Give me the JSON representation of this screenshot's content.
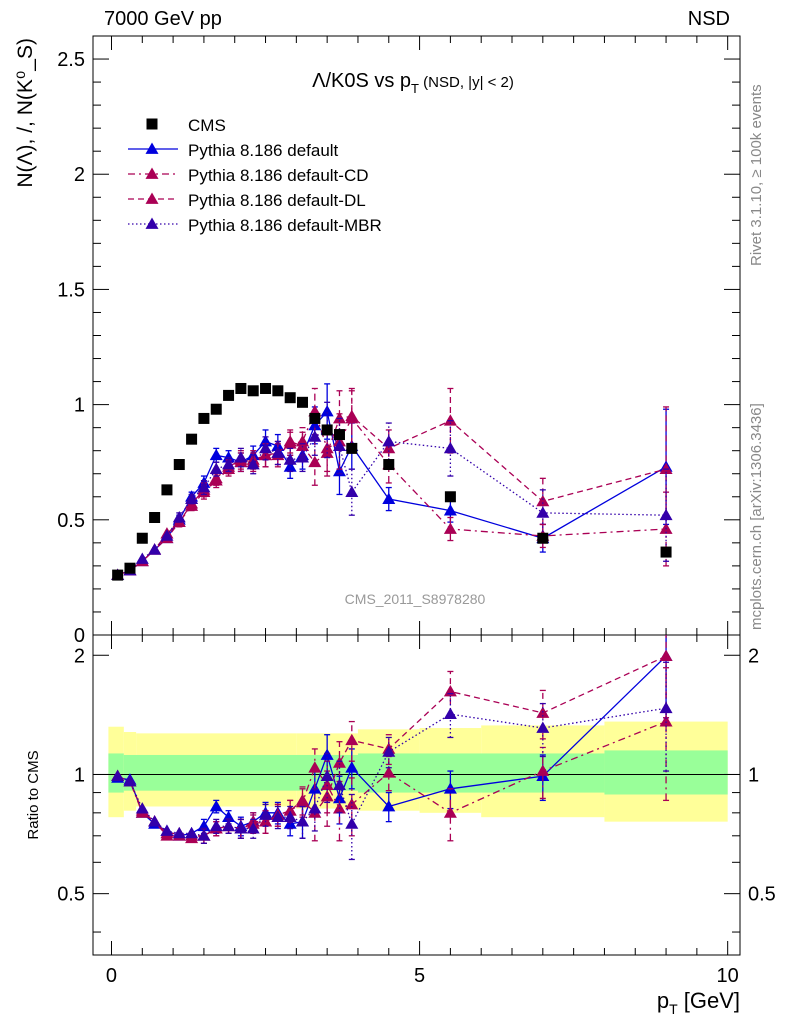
{
  "header": {
    "left": "7000 GeV pp",
    "right": "NSD"
  },
  "side_text": {
    "top": "Rivet 3.1.10, ≥ 100k events",
    "bottom": "mcplots.cern.ch [arXiv:1306.3436]"
  },
  "watermark": "CMS_2011_S8978280",
  "chart_data": {
    "type": "scatter",
    "title": "Λ/K0S vs p_T (NSD, |y| < 2)",
    "title_main": "Λ/K0S vs p",
    "title_sub": "T",
    "title_cond": "(NSD, |y| < 2)",
    "ylabel": "N(Λ), /, N(K⁰_S)",
    "xlabel": "p_T [GeV]",
    "xlabel_main": "p",
    "xlabel_sub": "T",
    "xlabel_unit": "[GeV]",
    "ratio_ylabel": "Ratio to CMS",
    "xlim": [
      -0.3,
      10.2
    ],
    "ylim": [
      0,
      2.6
    ],
    "ratio_ylim": [
      0.35,
      2.25
    ],
    "x_ticks": [
      {
        "v": 0,
        "label": "0"
      },
      {
        "v": 5,
        "label": "5"
      },
      {
        "v": 10,
        "label": "10"
      }
    ],
    "y_ticks": [
      {
        "v": 0,
        "label": "0"
      },
      {
        "v": 0.5,
        "label": "0.5"
      },
      {
        "v": 1,
        "label": "1"
      },
      {
        "v": 1.5,
        "label": "1.5"
      },
      {
        "v": 2,
        "label": "2"
      },
      {
        "v": 2.5,
        "label": "2.5"
      }
    ],
    "ratio_y_ticks": [
      {
        "v": 0.5,
        "label": "0.5"
      },
      {
        "v": 1,
        "label": "1"
      },
      {
        "v": 2,
        "label": "2"
      }
    ],
    "x": [
      0.1,
      0.3,
      0.5,
      0.7,
      0.9,
      1.1,
      1.3,
      1.5,
      1.7,
      1.9,
      2.1,
      2.3,
      2.5,
      2.7,
      2.9,
      3.1,
      3.3,
      3.5,
      3.7,
      3.9,
      4.5,
      5.5,
      7.0,
      9.0
    ],
    "reference": {
      "name": "CMS",
      "values": [
        0.26,
        0.29,
        0.42,
        0.51,
        0.63,
        0.74,
        0.85,
        0.94,
        0.98,
        1.04,
        1.07,
        1.06,
        1.07,
        1.06,
        1.03,
        1.01,
        0.94,
        0.89,
        0.87,
        0.81,
        0.74,
        0.6,
        0.42,
        0.36
      ],
      "color": "#000000"
    },
    "bands": [
      {
        "x0": -0.05,
        "x1": 0.2,
        "lo": 0.78,
        "hi": 1.32
      },
      {
        "x0": 0.2,
        "x1": 0.4,
        "lo": 0.81,
        "hi": 1.28
      },
      {
        "x0": 0.4,
        "x1": 3.0,
        "lo": 0.83,
        "hi": 1.27
      },
      {
        "x0": 3.0,
        "x1": 4.0,
        "lo": 0.82,
        "hi": 1.27
      },
      {
        "x0": 4.0,
        "x1": 5.0,
        "lo": 0.81,
        "hi": 1.3
      },
      {
        "x0": 5.0,
        "x1": 6.0,
        "lo": 0.8,
        "hi": 1.31
      },
      {
        "x0": 6.0,
        "x1": 8.0,
        "lo": 0.78,
        "hi": 1.33
      },
      {
        "x0": 8.0,
        "x1": 10.0,
        "lo": 0.76,
        "hi": 1.36
      }
    ],
    "inner_bands": [
      {
        "x0": -0.05,
        "x1": 0.2,
        "lo": 0.9,
        "hi": 1.13
      },
      {
        "x0": 0.2,
        "x1": 4.0,
        "lo": 0.91,
        "hi": 1.12
      },
      {
        "x0": 4.0,
        "x1": 8.0,
        "lo": 0.9,
        "hi": 1.13
      },
      {
        "x0": 8.0,
        "x1": 10.0,
        "lo": 0.89,
        "hi": 1.15
      }
    ],
    "band_colors": {
      "outer": "#ffff99",
      "inner": "#99ff99"
    },
    "series": [
      {
        "name": "Pythia 8.186 default",
        "color": "#0000dd",
        "dash": "",
        "values": [
          0.26,
          0.28,
          0.32,
          0.37,
          0.42,
          0.5,
          0.6,
          0.66,
          0.78,
          0.77,
          0.75,
          0.78,
          0.84,
          0.82,
          0.73,
          0.78,
          0.91,
          0.97,
          0.71,
          0.82,
          0.59,
          0.54,
          0.42,
          0.73
        ],
        "errors": [
          0.01,
          0.01,
          0.01,
          0.01,
          0.01,
          0.02,
          0.02,
          0.03,
          0.03,
          0.03,
          0.04,
          0.04,
          0.05,
          0.05,
          0.05,
          0.06,
          0.08,
          0.12,
          0.1,
          0.1,
          0.05,
          0.05,
          0.06,
          0.25
        ],
        "ratio": [
          0.98,
          0.97,
          0.8,
          0.75,
          0.72,
          0.7,
          0.71,
          0.74,
          0.83,
          0.78,
          0.74,
          0.76,
          0.8,
          0.8,
          0.75,
          0.76,
          0.92,
          1.12,
          0.87,
          1.04,
          0.83,
          0.92,
          0.99,
          1.99
        ],
        "ratio_errors": [
          0.02,
          0.02,
          0.02,
          0.02,
          0.02,
          0.02,
          0.02,
          0.03,
          0.03,
          0.03,
          0.04,
          0.04,
          0.05,
          0.05,
          0.05,
          0.07,
          0.1,
          0.14,
          0.12,
          0.12,
          0.07,
          0.1,
          0.13,
          0.6
        ]
      },
      {
        "name": "Pythia 8.186 default-CD",
        "color": "#aa0055",
        "dash": "7,4,2,4",
        "values": [
          0.26,
          0.28,
          0.32,
          0.37,
          0.44,
          0.49,
          0.56,
          0.62,
          0.67,
          0.72,
          0.75,
          0.76,
          0.78,
          0.78,
          0.83,
          0.84,
          0.97,
          0.81,
          0.84,
          0.94,
          0.74,
          0.46,
          0.43,
          0.46
        ],
        "errors": [
          0.01,
          0.01,
          0.01,
          0.01,
          0.01,
          0.02,
          0.02,
          0.03,
          0.03,
          0.03,
          0.04,
          0.04,
          0.05,
          0.05,
          0.05,
          0.06,
          0.1,
          0.1,
          0.12,
          0.12,
          0.08,
          0.05,
          0.05,
          0.16
        ],
        "ratio": [
          0.99,
          0.96,
          0.8,
          0.76,
          0.7,
          0.7,
          0.69,
          0.7,
          0.73,
          0.74,
          0.73,
          0.76,
          0.76,
          0.79,
          0.81,
          0.85,
          1.04,
          0.94,
          0.82,
          0.84,
          1.01,
          0.8,
          1.02,
          1.36
        ],
        "ratio_errors": [
          0.02,
          0.02,
          0.02,
          0.02,
          0.02,
          0.02,
          0.02,
          0.03,
          0.03,
          0.03,
          0.04,
          0.04,
          0.05,
          0.05,
          0.05,
          0.07,
          0.12,
          0.14,
          0.14,
          0.14,
          0.1,
          0.12,
          0.15,
          0.5
        ]
      },
      {
        "name": "Pythia 8.186 default-DL",
        "color": "#aa0055",
        "dash": "6,4",
        "values": [
          0.26,
          0.28,
          0.32,
          0.37,
          0.42,
          0.49,
          0.57,
          0.63,
          0.68,
          0.73,
          0.76,
          0.75,
          0.78,
          0.79,
          0.84,
          0.82,
          0.75,
          0.79,
          0.94,
          0.95,
          0.81,
          0.93,
          0.58,
          0.72
        ],
        "errors": [
          0.01,
          0.01,
          0.01,
          0.01,
          0.01,
          0.02,
          0.02,
          0.03,
          0.03,
          0.03,
          0.04,
          0.04,
          0.05,
          0.05,
          0.05,
          0.06,
          0.1,
          0.1,
          0.12,
          0.12,
          0.08,
          0.14,
          0.1,
          0.27
        ],
        "ratio": [
          0.99,
          0.96,
          0.81,
          0.76,
          0.71,
          0.71,
          0.7,
          0.7,
          0.73,
          0.74,
          0.73,
          0.75,
          0.76,
          0.79,
          0.81,
          0.86,
          0.8,
          0.88,
          1.07,
          1.22,
          1.16,
          1.62,
          1.43,
          1.99
        ],
        "ratio_errors": [
          0.02,
          0.02,
          0.02,
          0.02,
          0.02,
          0.02,
          0.02,
          0.03,
          0.03,
          0.03,
          0.04,
          0.04,
          0.05,
          0.05,
          0.05,
          0.07,
          0.12,
          0.14,
          0.14,
          0.14,
          0.1,
          0.2,
          0.2,
          0.6
        ]
      },
      {
        "name": "Pythia 8.186 default-MBR",
        "color": "#3300aa",
        "dash": "1.5,2.5",
        "values": [
          0.26,
          0.28,
          0.33,
          0.37,
          0.43,
          0.51,
          0.59,
          0.64,
          0.72,
          0.74,
          0.77,
          0.74,
          0.81,
          0.79,
          0.76,
          0.77,
          0.86,
          0.89,
          0.82,
          0.62,
          0.84,
          0.81,
          0.53,
          0.52
        ],
        "errors": [
          0.01,
          0.01,
          0.01,
          0.01,
          0.01,
          0.02,
          0.02,
          0.03,
          0.03,
          0.03,
          0.04,
          0.04,
          0.05,
          0.05,
          0.05,
          0.06,
          0.08,
          0.12,
          0.12,
          0.1,
          0.08,
          0.12,
          0.1,
          0.2
        ],
        "ratio": [
          0.99,
          0.96,
          0.82,
          0.76,
          0.72,
          0.71,
          0.71,
          0.7,
          0.74,
          0.74,
          0.73,
          0.73,
          0.79,
          0.78,
          0.78,
          0.76,
          0.82,
          0.99,
          0.94,
          0.75,
          1.14,
          1.42,
          1.31,
          1.47
        ],
        "ratio_errors": [
          0.02,
          0.02,
          0.02,
          0.02,
          0.02,
          0.02,
          0.02,
          0.03,
          0.03,
          0.03,
          0.04,
          0.04,
          0.05,
          0.05,
          0.05,
          0.07,
          0.1,
          0.14,
          0.14,
          0.14,
          0.1,
          0.18,
          0.2,
          0.45
        ]
      }
    ]
  }
}
